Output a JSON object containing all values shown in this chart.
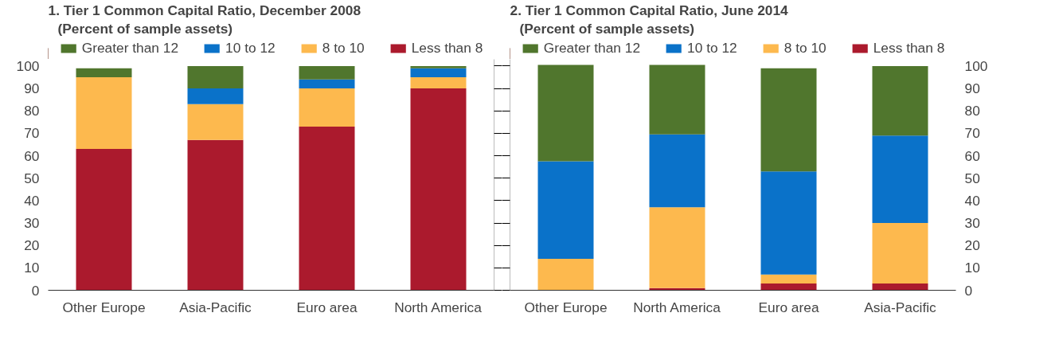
{
  "chart_data": [
    {
      "type": "bar",
      "stacked": true,
      "title": "1. Tier 1 Common Capital Ratio, December 2008",
      "subtitle": "(Percent of sample assets)",
      "categories": [
        "Other Europe",
        "Asia-Pacific",
        "Euro area",
        "North America"
      ],
      "series": [
        {
          "name": "Less than 8",
          "color": "#ab1a2d",
          "values": [
            63,
            67,
            73,
            90
          ]
        },
        {
          "name": "8 to 10",
          "color": "#fdb94e",
          "values": [
            32,
            16,
            17,
            5
          ]
        },
        {
          "name": "10 to 12",
          "color": "#0a72c9",
          "values": [
            0,
            7,
            4,
            4
          ]
        },
        {
          "name": "Greater than 12",
          "color": "#50762d",
          "values": [
            4,
            10,
            6,
            1
          ]
        }
      ],
      "ylim": [
        0,
        103
      ],
      "yticks": [
        0,
        10,
        20,
        30,
        40,
        50,
        60,
        70,
        80,
        90,
        100
      ],
      "grid": false,
      "legend": "top"
    },
    {
      "type": "bar",
      "stacked": true,
      "title": "2. Tier 1 Common Capital Ratio, June 2014",
      "subtitle": "(Percent of sample assets)",
      "categories": [
        "Other Europe",
        "North America",
        "Euro area",
        "Asia-Pacific"
      ],
      "series": [
        {
          "name": "Less than 8",
          "color": "#ab1a2d",
          "axis": "y2",
          "values": [
            0,
            1,
            3,
            3
          ]
        },
        {
          "name": "8 to 10",
          "color": "#fdb94e",
          "axis": "y2",
          "values": [
            14,
            36,
            4,
            27
          ]
        },
        {
          "name": "10 to 12",
          "color": "#0a72c9",
          "axis": "y2",
          "values": [
            43.5,
            32.5,
            46,
            39
          ]
        },
        {
          "name": "Greater than 12",
          "color": "#50762d",
          "axis": "y2",
          "values": [
            43,
            31,
            46,
            31
          ]
        }
      ],
      "y2lim": [
        0,
        103
      ],
      "y2ticks": [
        0,
        10,
        20,
        30,
        40,
        50,
        60,
        70,
        80,
        90,
        100
      ],
      "grid": false,
      "legend": "top"
    }
  ]
}
